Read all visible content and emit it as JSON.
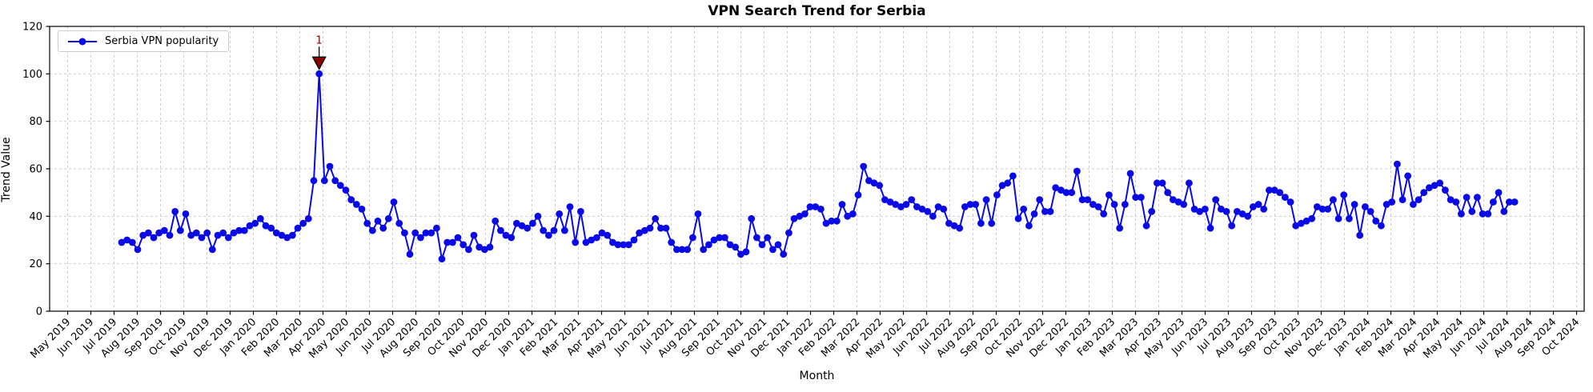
{
  "title": "VPN Search Trend for Serbia",
  "x_axis_label": "Month",
  "y_axis_label": "Trend Value",
  "legend": {
    "label": "Serbia VPN popularity"
  },
  "colors": {
    "line": "#0a0ae6",
    "marker": "#0a0ae6",
    "annotation": "#8b0000",
    "annotation_edge": "#000000",
    "grid": "#c8c8c8",
    "axis": "#000000",
    "background": "#ffffff"
  },
  "chart_data": {
    "type": "line",
    "title": "VPN Search Trend for Serbia",
    "xlabel": "Month",
    "ylabel": "Trend Value",
    "ylim": [
      0,
      120
    ],
    "y_ticks": [
      0,
      20,
      40,
      60,
      80,
      100,
      120
    ],
    "grid": "dashed both axes",
    "legend_position": "upper left",
    "x_tick_labels": [
      "May 2019",
      "Jun 2019",
      "Jul 2019",
      "Aug 2019",
      "Sep 2019",
      "Oct 2019",
      "Nov 2019",
      "Dec 2019",
      "Jan 2020",
      "Feb 2020",
      "Mar 2020",
      "Apr 2020",
      "May 2020",
      "Jun 2020",
      "Jul 2020",
      "Aug 2020",
      "Sep 2020",
      "Oct 2020",
      "Nov 2020",
      "Dec 2020",
      "Jan 2021",
      "Feb 2021",
      "Mar 2021",
      "Apr 2021",
      "May 2021",
      "Jun 2021",
      "Jul 2021",
      "Aug 2021",
      "Sep 2021",
      "Oct 2021",
      "Nov 2021",
      "Dec 2021",
      "Jan 2022",
      "Feb 2022",
      "Mar 2022",
      "Apr 2022",
      "May 2022",
      "Jun 2022",
      "Jul 2022",
      "Aug 2022",
      "Sep 2022",
      "Oct 2022",
      "Nov 2022",
      "Dec 2022",
      "Jan 2023",
      "Feb 2023",
      "Mar 2023",
      "Apr 2023",
      "May 2023",
      "Jun 2023",
      "Jul 2023",
      "Aug 2023",
      "Sep 2023",
      "Oct 2023",
      "Nov 2023",
      "Dec 2023",
      "Jan 2024",
      "Feb 2024",
      "Mar 2024",
      "Apr 2024",
      "May 2024",
      "Jun 2024",
      "Jul 2024",
      "Aug 2024",
      "Sep 2024",
      "Oct 2024"
    ],
    "series": [
      {
        "name": "Serbia VPN popularity",
        "cadence": "weekly",
        "first_point_near": "mid Jul 2019",
        "last_point_near": "mid Jul 2024",
        "values": [
          29,
          30,
          29,
          26,
          32,
          33,
          31,
          33,
          34,
          32,
          42,
          34,
          41,
          32,
          33,
          31,
          33,
          26,
          32,
          33,
          31,
          33,
          34,
          34,
          36,
          37,
          39,
          36,
          35,
          33,
          32,
          31,
          32,
          35,
          37,
          39,
          55,
          100,
          55,
          61,
          55,
          53,
          51,
          47,
          45,
          43,
          37,
          34,
          38,
          35,
          39,
          46,
          37,
          33,
          24,
          33,
          31,
          33,
          33,
          35,
          22,
          29,
          29,
          31,
          28,
          26,
          32,
          27,
          26,
          27,
          38,
          34,
          32,
          31,
          37,
          36,
          35,
          37,
          40,
          34,
          32,
          34,
          41,
          34,
          44,
          29,
          42,
          29,
          30,
          31,
          33,
          32,
          29,
          28,
          28,
          28,
          30,
          33,
          34,
          35,
          39,
          35,
          35,
          29,
          26,
          26,
          26,
          31,
          41,
          26,
          28,
          30,
          31,
          31,
          28,
          27,
          24,
          25,
          39,
          31,
          28,
          31,
          26,
          28,
          24,
          33,
          39,
          40,
          41,
          44,
          44,
          43,
          37,
          38,
          38,
          45,
          40,
          41,
          49,
          61,
          55,
          54,
          53,
          47,
          46,
          45,
          44,
          45,
          47,
          44,
          43,
          42,
          40,
          44,
          43,
          37,
          36,
          35,
          44,
          45,
          45,
          37,
          47,
          37,
          49,
          53,
          54,
          57,
          39,
          43,
          36,
          41,
          47,
          42,
          42,
          52,
          51,
          50,
          50,
          59,
          47,
          47,
          45,
          44,
          41,
          49,
          45,
          35,
          45,
          58,
          48,
          48,
          36,
          42,
          54,
          54,
          50,
          47,
          46,
          45,
          54,
          43,
          42,
          43,
          35,
          47,
          43,
          42,
          36,
          42,
          41,
          40,
          44,
          45,
          43,
          51,
          51,
          50,
          48,
          46,
          36,
          37,
          38,
          39,
          44,
          43,
          43,
          47,
          39,
          49,
          39,
          45,
          32,
          44,
          42,
          38,
          36,
          45,
          46,
          62,
          47,
          57,
          45,
          47,
          50,
          52,
          53,
          54,
          51,
          47,
          46,
          41,
          48,
          42,
          48,
          41,
          41,
          46,
          50,
          42,
          46,
          46
        ]
      }
    ],
    "annotations": [
      {
        "label": "1",
        "point_index": 37,
        "value": 100,
        "marker": "triangle-down",
        "color": "#8b0000"
      }
    ]
  }
}
